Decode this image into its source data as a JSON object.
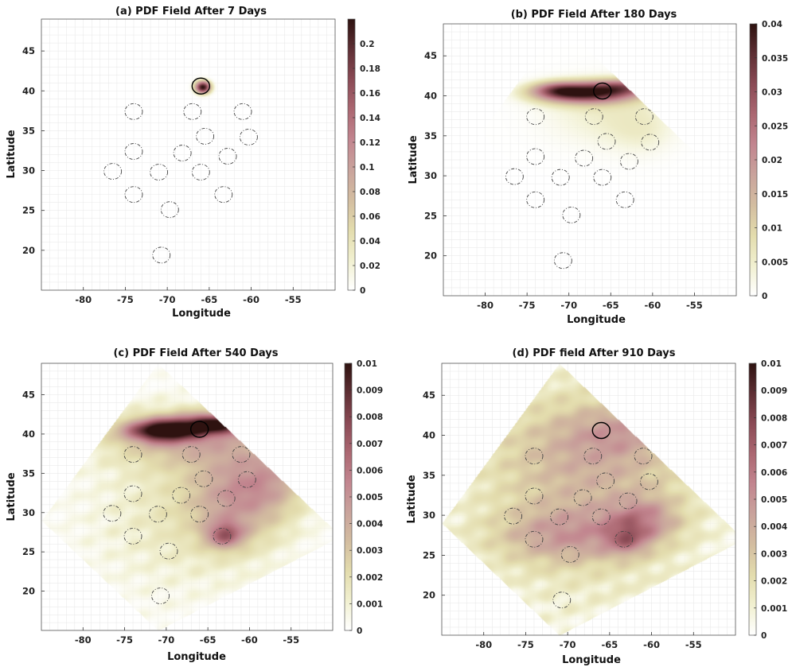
{
  "colors": {
    "colormap": [
      "#ffffff",
      "#f1f0d0",
      "#e3dcad",
      "#d3bda0",
      "#c9a39c",
      "#c2858f",
      "#ab6771",
      "#8a4a55",
      "#5e2f34",
      "#2e1210"
    ],
    "grid": "#e6e6e6",
    "circle_site": "#444444",
    "circle_release": "#000000"
  },
  "chart_data": [
    {
      "type": "heatmap",
      "title": "(a) PDF Field After 7 Days",
      "xlabel": "Longitude",
      "ylabel": "Latitude",
      "xlim": [
        -85,
        -50
      ],
      "ylim": [
        15,
        49
      ],
      "xticks": [
        -80,
        -75,
        -70,
        -65,
        -60,
        -55
      ],
      "yticks": [
        20,
        25,
        30,
        35,
        40,
        45
      ],
      "grid": true,
      "colorbar": {
        "min": 0,
        "max": 0.22,
        "ticks": [
          "0",
          "0.02",
          "0.04",
          "0.06",
          "0.08",
          "0.1",
          "0.12",
          "0.14",
          "0.16",
          "0.18",
          "0.2"
        ],
        "tick_values": [
          0,
          0.02,
          0.04,
          0.06,
          0.08,
          0.1,
          0.12,
          0.14,
          0.16,
          0.18,
          0.2
        ]
      },
      "domain": [
        [
          -71,
          49
        ],
        [
          -49,
          27
        ],
        [
          -71,
          15
        ],
        [
          -85,
          29
        ]
      ],
      "blobs": [
        {
          "lon": -65.8,
          "lat": 40.5,
          "slon": 0.65,
          "slat": 0.55,
          "value": 0.22
        }
      ],
      "noise": 0,
      "release_site": {
        "lon": -66,
        "lat": 40.6
      },
      "sites": [
        [
          -74,
          37.4
        ],
        [
          -67,
          37.4
        ],
        [
          -61,
          37.4
        ],
        [
          -65.5,
          34.3
        ],
        [
          -60.3,
          34.2
        ],
        [
          -74,
          32.4
        ],
        [
          -68.2,
          32.2
        ],
        [
          -62.8,
          31.8
        ],
        [
          -76.5,
          29.9
        ],
        [
          -71,
          29.8
        ],
        [
          -66,
          29.8
        ],
        [
          -74,
          27
        ],
        [
          -63.3,
          27
        ],
        [
          -69.7,
          25.1
        ],
        [
          -70.7,
          19.4
        ]
      ]
    },
    {
      "type": "heatmap",
      "title": "(b) PDF Field After 180 Days",
      "xlabel": "Longitude",
      "ylabel": "Latitude",
      "xlim": [
        -85,
        -50
      ],
      "ylim": [
        15,
        49
      ],
      "xticks": [
        -80,
        -75,
        -70,
        -65,
        -60,
        -55
      ],
      "yticks": [
        20,
        25,
        30,
        35,
        40,
        45
      ],
      "grid": true,
      "colorbar": {
        "min": 0,
        "max": 0.04,
        "ticks": [
          "0",
          "0.005",
          "0.01",
          "0.015",
          "0.02",
          "0.025",
          "0.03",
          "0.035",
          "0.04"
        ],
        "tick_values": [
          0,
          0.005,
          0.01,
          0.015,
          0.02,
          0.025,
          0.03,
          0.035,
          0.04
        ]
      },
      "domain": [
        [
          -71,
          49
        ],
        [
          -49,
          27
        ],
        [
          -71,
          15
        ],
        [
          -85,
          29
        ]
      ],
      "blobs": [
        {
          "lon": -68,
          "lat": 40.4,
          "slon": 4.0,
          "slat": 0.9,
          "value": 0.035
        },
        {
          "lon": -63,
          "lat": 41.2,
          "slon": 3.0,
          "slat": 0.7,
          "value": 0.017
        },
        {
          "lon": -71.5,
          "lat": 40.8,
          "slon": 2.0,
          "slat": 0.7,
          "value": 0.014
        },
        {
          "lon": -66,
          "lat": 38,
          "slon": 6.0,
          "slat": 3.5,
          "value": 0.005
        },
        {
          "lon": -61,
          "lat": 35.5,
          "slon": 3.0,
          "slat": 2.5,
          "value": 0.003
        }
      ],
      "noise": 0,
      "release_site": {
        "lon": -66,
        "lat": 40.6
      },
      "sites": [
        [
          -74,
          37.4
        ],
        [
          -67,
          37.4
        ],
        [
          -61,
          37.4
        ],
        [
          -65.5,
          34.3
        ],
        [
          -60.3,
          34.2
        ],
        [
          -74,
          32.4
        ],
        [
          -68.2,
          32.2
        ],
        [
          -62.8,
          31.8
        ],
        [
          -76.5,
          29.9
        ],
        [
          -71,
          29.8
        ],
        [
          -66,
          29.8
        ],
        [
          -74,
          27
        ],
        [
          -63.3,
          27
        ],
        [
          -69.7,
          25.1
        ],
        [
          -70.7,
          19.4
        ]
      ]
    },
    {
      "type": "heatmap",
      "title": "(c) PDF Field After 540 Days",
      "xlabel": "Longitude",
      "ylabel": "Latitude",
      "xlim": [
        -85,
        -50
      ],
      "ylim": [
        15,
        49
      ],
      "xticks": [
        -80,
        -75,
        -70,
        -65,
        -60,
        -55
      ],
      "yticks": [
        20,
        25,
        30,
        35,
        40,
        45
      ],
      "grid": true,
      "colorbar": {
        "min": 0,
        "max": 0.01,
        "ticks": [
          "0",
          "0.001",
          "0.002",
          "0.003",
          "0.004",
          "0.005",
          "0.006",
          "0.007",
          "0.008",
          "0.009",
          "0.01"
        ],
        "tick_values": [
          0,
          0.001,
          0.002,
          0.003,
          0.004,
          0.005,
          0.006,
          0.007,
          0.008,
          0.009,
          0.01
        ]
      },
      "domain": [
        [
          -71,
          49
        ],
        [
          -49,
          27
        ],
        [
          -71,
          15
        ],
        [
          -85,
          29
        ]
      ],
      "blobs": [
        {
          "lon": -70.5,
          "lat": 40.5,
          "slon": 3.0,
          "slat": 1.0,
          "value": 0.0085
        },
        {
          "lon": -64,
          "lat": 41.3,
          "slon": 3.0,
          "slat": 0.9,
          "value": 0.0075
        },
        {
          "lon": -67,
          "lat": 39.5,
          "slon": 7.0,
          "slat": 2.5,
          "value": 0.003
        },
        {
          "lon": -61.5,
          "lat": 32,
          "slon": 4.0,
          "slat": 4.0,
          "value": 0.0035
        },
        {
          "lon": -63,
          "lat": 27.2,
          "slon": 1.6,
          "slat": 1.2,
          "value": 0.0045
        },
        {
          "lon": -68,
          "lat": 30,
          "slon": 8.0,
          "slat": 7.0,
          "value": 0.0012
        },
        {
          "lon": -57,
          "lat": 34.5,
          "slon": 3.0,
          "slat": 3.0,
          "value": 0.0022
        }
      ],
      "noise": 0.0008,
      "release_site": {
        "lon": -66,
        "lat": 40.6
      },
      "sites": [
        [
          -74,
          37.4
        ],
        [
          -67,
          37.4
        ],
        [
          -61,
          37.4
        ],
        [
          -65.5,
          34.3
        ],
        [
          -60.3,
          34.2
        ],
        [
          -74,
          32.4
        ],
        [
          -68.2,
          32.2
        ],
        [
          -62.8,
          31.8
        ],
        [
          -76.5,
          29.9
        ],
        [
          -71,
          29.8
        ],
        [
          -66,
          29.8
        ],
        [
          -74,
          27
        ],
        [
          -63.3,
          27
        ],
        [
          -69.7,
          25.1
        ],
        [
          -70.7,
          19.4
        ]
      ]
    },
    {
      "type": "heatmap",
      "title": "(d) PDF field After 910 Days",
      "xlabel": "Longitude",
      "ylabel": "Latitude",
      "xlim": [
        -85,
        -50
      ],
      "ylim": [
        15,
        49
      ],
      "xticks": [
        -80,
        -75,
        -70,
        -65,
        -60,
        -55
      ],
      "yticks": [
        20,
        25,
        30,
        35,
        40,
        45
      ],
      "grid": true,
      "colorbar": {
        "min": 0,
        "max": 0.01,
        "ticks": [
          "0",
          "0.001",
          "0.002",
          "0.003",
          "0.004",
          "0.005",
          "0.006",
          "0.007",
          "0.008",
          "0.009",
          "0.01"
        ],
        "tick_values": [
          0,
          0.001,
          0.002,
          0.003,
          0.004,
          0.005,
          0.006,
          0.007,
          0.008,
          0.009,
          0.01
        ]
      },
      "domain": [
        [
          -71,
          49
        ],
        [
          -49,
          27
        ],
        [
          -71,
          15
        ],
        [
          -85,
          29
        ]
      ],
      "blobs": [
        {
          "lon": -67,
          "lat": 38,
          "slon": 8.0,
          "slat": 5.0,
          "value": 0.0022
        },
        {
          "lon": -70,
          "lat": 27.5,
          "slon": 6.0,
          "slat": 2.5,
          "value": 0.003
        },
        {
          "lon": -61,
          "lat": 29.5,
          "slon": 3.0,
          "slat": 2.0,
          "value": 0.0032
        },
        {
          "lon": -63,
          "lat": 27,
          "slon": 1.8,
          "slat": 1.4,
          "value": 0.0028
        },
        {
          "lon": -68,
          "lat": 32,
          "slon": 10.0,
          "slat": 10.0,
          "value": 0.0014
        },
        {
          "lon": -64,
          "lat": 40.5,
          "slon": 4.0,
          "slat": 2.0,
          "value": 0.0016
        }
      ],
      "noise": 0.0012,
      "release_site": {
        "lon": -66,
        "lat": 40.6
      },
      "sites": [
        [
          -74,
          37.4
        ],
        [
          -67,
          37.4
        ],
        [
          -61,
          37.4
        ],
        [
          -65.5,
          34.3
        ],
        [
          -60.3,
          34.2
        ],
        [
          -74,
          32.4
        ],
        [
          -68.2,
          32.2
        ],
        [
          -62.8,
          31.8
        ],
        [
          -76.5,
          29.9
        ],
        [
          -71,
          29.8
        ],
        [
          -66,
          29.8
        ],
        [
          -74,
          27
        ],
        [
          -63.3,
          27
        ],
        [
          -69.7,
          25.1
        ],
        [
          -70.7,
          19.4
        ]
      ]
    }
  ]
}
